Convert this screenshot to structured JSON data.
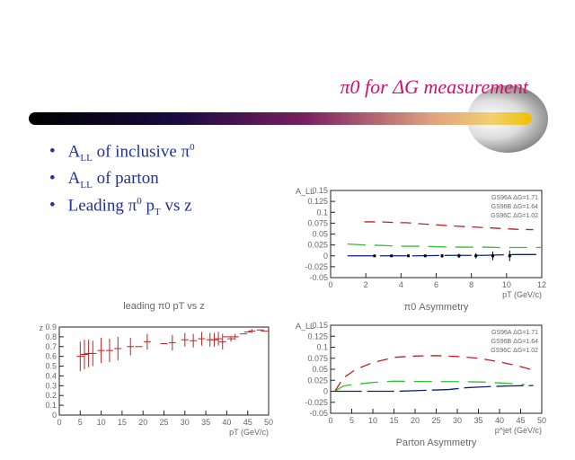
{
  "slide": {
    "title": "π0 for ΔG measurement",
    "bullets": [
      {
        "a": "A",
        "sub": "LL",
        "b": " of inclusive π",
        "sup": "0",
        "c": ""
      },
      {
        "a": "A",
        "sub": "LL",
        "b": " of parton",
        "sup": "",
        "c": ""
      },
      {
        "a": "Leading π",
        "sub": "",
        "b": "",
        "sup": "0",
        "c": " p",
        "sub2": "T",
        "d": " vs z"
      }
    ]
  },
  "chart_data": [
    {
      "type": "line",
      "title": "π0 Asymmetry",
      "xlabel": "pT (GeV/c)",
      "ylabel": "A_LL",
      "xlim": [
        0,
        12.5
      ],
      "ylim": [
        -0.05,
        0.15
      ],
      "xticks": [
        "0",
        "2",
        "4",
        "6",
        "8",
        "10",
        "12"
      ],
      "yticks": [
        "0.15",
        "0.125",
        "0.1",
        "0.075",
        "0.05",
        "0.025",
        "0",
        "-0.025",
        "-0.05"
      ],
      "legend": [
        "GS96A ΔG=1.71",
        "GS96B ΔG=1.64",
        "GS96C ΔG=1.02"
      ],
      "series": [
        {
          "name": "GS96A ΔG=1.71",
          "color": "#c02020",
          "x": [
            2,
            3,
            4,
            4.5,
            5.5,
            6,
            7,
            7.5,
            8.5,
            9.5,
            10,
            11,
            12
          ],
          "y": [
            0.078,
            0.078,
            0.076,
            0.076,
            0.073,
            0.072,
            0.069,
            0.068,
            0.066,
            0.064,
            0.063,
            0.061,
            0.06
          ]
        },
        {
          "name": "GS96B ΔG=1.64",
          "color": "#30c030",
          "x": [
            1,
            2,
            3,
            4,
            5.5,
            7,
            9,
            10,
            12.5
          ],
          "y": [
            0.027,
            0.025,
            0.024,
            0.022,
            0.022,
            0.02,
            0.02,
            0.019,
            0.019
          ]
        },
        {
          "name": "GS96C ΔG=1.02",
          "color": "#102080",
          "x": [
            1,
            3,
            5,
            7,
            9,
            11,
            12.5
          ],
          "y": [
            0,
            0,
            0,
            0.001,
            0.001,
            0.003,
            0.003
          ]
        }
      ],
      "points": {
        "x": [
          2.6,
          3.6,
          4.6,
          5.6,
          6.6,
          7.6,
          8.6,
          9.6,
          10.6
        ],
        "y": [
          0,
          0,
          0,
          0,
          0,
          0,
          0,
          0,
          0
        ],
        "err": [
          0.002,
          0.002,
          0.003,
          0.003,
          0.004,
          0.005,
          0.006,
          0.01,
          0.012
        ]
      }
    },
    {
      "type": "line",
      "title": "Parton Asymmetry",
      "xlabel": "p^jet (GeV/c)",
      "ylabel": "A_LL",
      "xlim": [
        0,
        50
      ],
      "ylim": [
        -0.05,
        0.15
      ],
      "xticks": [
        "0",
        "5",
        "10",
        "15",
        "20",
        "25",
        "30",
        "35",
        "40",
        "45",
        "50"
      ],
      "yticks": [
        "0.15",
        "0.125",
        "0.1",
        "0.075",
        "0.05",
        "0.025",
        "0",
        "-0.025",
        "-0.05"
      ],
      "legend": [
        "GS96A ΔG=1.71",
        "GS96B ΔG=1.64",
        "GS96C ΔG=1.02"
      ],
      "series": [
        {
          "name": "GS96A ΔG=1.71",
          "color": "#c02020",
          "x": [
            1,
            3,
            6,
            10,
            15,
            20,
            25,
            30,
            35,
            40,
            45,
            48
          ],
          "y": [
            0,
            0.03,
            0.05,
            0.065,
            0.077,
            0.08,
            0.081,
            0.079,
            0.075,
            0.067,
            0.056,
            0.048
          ]
        },
        {
          "name": "GS96B ΔG=1.64",
          "color": "#30c030",
          "x": [
            1,
            3,
            6,
            10,
            15,
            24,
            30,
            36,
            42,
            46
          ],
          "y": [
            0,
            0.012,
            0.016,
            0.02,
            0.023,
            0.022,
            0.022,
            0.021,
            0.018,
            0.015
          ]
        },
        {
          "name": "GS96C ΔG=1.02",
          "color": "#102080",
          "x": [
            1,
            8,
            16,
            22,
            28,
            32,
            36,
            42,
            48
          ],
          "y": [
            0,
            0,
            0,
            0.002,
            0.004,
            0.008,
            0.01,
            0.012,
            0.013
          ]
        }
      ]
    },
    {
      "type": "scatter",
      "title": "leading π0 pT vs z",
      "xlabel": "pT (GeV/c)",
      "ylabel": "z",
      "xlim": [
        0,
        50
      ],
      "ylim": [
        0,
        0.9
      ],
      "xticks": [
        "0",
        "5",
        "10",
        "15",
        "20",
        "25",
        "30",
        "35",
        "40",
        "45",
        "50"
      ],
      "yticks": [
        "0",
        "0.1",
        "0.2",
        "0.3",
        "0.4",
        "0.5",
        "0.6",
        "0.7",
        "0.8",
        "0.9"
      ],
      "x": [
        5,
        6,
        7,
        8,
        10,
        12,
        14,
        17,
        19,
        21,
        25,
        27,
        30,
        32,
        34,
        36,
        37,
        38,
        39,
        40,
        41,
        42,
        44,
        45,
        46,
        48,
        49
      ],
      "y": [
        0.6,
        0.62,
        0.63,
        0.63,
        0.66,
        0.66,
        0.68,
        0.7,
        0.7,
        0.75,
        0.73,
        0.74,
        0.77,
        0.76,
        0.78,
        0.77,
        0.77,
        0.78,
        0.75,
        0.8,
        0.78,
        0.8,
        0.83,
        0.85,
        0.86,
        0.87,
        0.86
      ],
      "err": [
        0.15,
        0.15,
        0.14,
        0.13,
        0.13,
        0.12,
        0.12,
        0.09,
        0.0,
        0.08,
        0.0,
        0.08,
        0.07,
        0.07,
        0.07,
        0.07,
        0.07,
        0.07,
        0.08,
        0.0,
        0.03,
        0.03,
        0.0,
        0.0,
        0.02,
        0.0,
        0.0
      ]
    }
  ]
}
